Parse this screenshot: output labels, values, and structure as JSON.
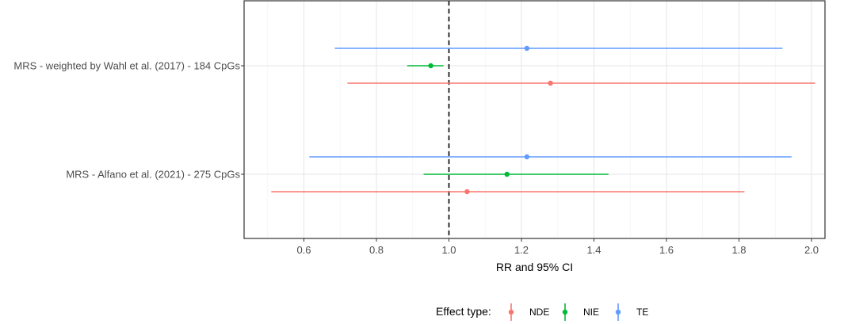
{
  "chart_data": {
    "type": "forest",
    "xlabel": "RR and 95% CI",
    "xlim": [
      0.44,
      2.06
    ],
    "x_ticks": [
      0.6,
      0.8,
      1.0,
      1.2,
      1.4,
      1.6,
      1.8,
      2.0
    ],
    "x_tick_labels": [
      "0.6",
      "0.8",
      "1.0",
      "1.2",
      "1.4",
      "1.6",
      "1.8",
      "2.0"
    ],
    "reference_line": 1.0,
    "grid": true,
    "categories": [
      "MRS - weighted by Wahl et al. (2017) - 184 CpGs",
      "MRS - Alfano et al. (2021) - 275 CpGs"
    ],
    "legend_title": "Effect type:",
    "legend_position": "bottom",
    "series": [
      {
        "name": "NDE",
        "color": "#F8766D",
        "estimates": [
          1.28,
          1.05
        ],
        "lower": [
          0.72,
          0.51
        ],
        "upper": [
          2.01,
          1.815
        ]
      },
      {
        "name": "NIE",
        "color": "#00BA38",
        "estimates": [
          0.95,
          1.16
        ],
        "lower": [
          0.885,
          0.93
        ],
        "upper": [
          0.985,
          1.44
        ]
      },
      {
        "name": "TE",
        "color": "#619CFF",
        "estimates": [
          1.215,
          1.215
        ],
        "lower": [
          0.685,
          0.615
        ],
        "upper": [
          1.92,
          1.945
        ]
      }
    ]
  }
}
